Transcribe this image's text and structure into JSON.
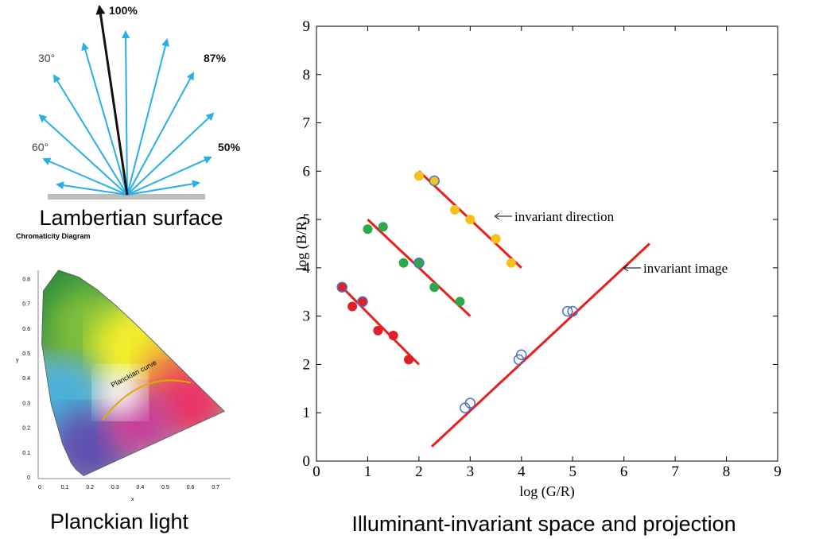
{
  "lambertian": {
    "labels": [
      "100%",
      "30°",
      "87%",
      "60°",
      "50%"
    ],
    "caption": "Lambertian surface"
  },
  "chromaticity": {
    "title": "Chromaticity Diagram",
    "curve_label": "Planckian curve",
    "axis_x": "x",
    "axis_y": "y",
    "xticks": [
      0,
      0.1,
      0.2,
      0.3,
      0.4,
      0.5,
      0.6,
      0.7
    ],
    "yticks": [
      0,
      0.1,
      0.2,
      0.3,
      0.4,
      0.5,
      0.6,
      0.7,
      0.8
    ],
    "caption": "Planckian light"
  },
  "chart_data": {
    "type": "scatter",
    "xlabel": "log (G/R)",
    "ylabel": "log (B/R)",
    "caption": "Illuminant-invariant space and projection",
    "xlim": [
      0,
      9
    ],
    "ylim": [
      0,
      9
    ],
    "xticks": [
      0,
      1,
      2,
      3,
      4,
      5,
      6,
      7,
      8,
      9
    ],
    "yticks": [
      0,
      1,
      2,
      3,
      4,
      5,
      6,
      7,
      8,
      9
    ],
    "series": [
      {
        "marker": "line",
        "color": "#e8201c",
        "x": [
          0.5,
          2
        ],
        "values": [
          3.6,
          2
        ]
      },
      {
        "marker": "line",
        "color": "#e8201c",
        "x": [
          1,
          3
        ],
        "values": [
          5,
          3
        ]
      },
      {
        "marker": "line",
        "color": "#e8201c",
        "x": [
          2,
          4
        ],
        "values": [
          6,
          4
        ]
      },
      {
        "marker": "line",
        "color": "#e8201c",
        "x": [
          2.25,
          6.5
        ],
        "values": [
          0.3,
          4.5
        ]
      },
      {
        "marker": "filled",
        "color": "#e01f2a",
        "x": [
          0.5,
          0.7,
          0.9,
          1.2,
          1.5,
          1.8
        ],
        "values": [
          3.6,
          3.2,
          3.3,
          2.7,
          2.6,
          2.1
        ]
      },
      {
        "marker": "filled",
        "color": "#2ea84a",
        "x": [
          1,
          1.3,
          1.7,
          2,
          2.3,
          2.8
        ],
        "values": [
          4.8,
          4.85,
          4.1,
          4.1,
          3.6,
          3.3
        ]
      },
      {
        "marker": "filled",
        "color": "#f6c21a",
        "x": [
          2,
          2.3,
          2.7,
          3,
          3.5,
          3.8
        ],
        "values": [
          5.9,
          5.8,
          5.2,
          5,
          4.6,
          4.1
        ]
      },
      {
        "marker": "open",
        "color": "#4a73c8",
        "x": [
          0.5,
          0.9,
          2,
          2.3,
          2.9,
          3,
          3.95,
          4,
          4.9,
          5
        ],
        "values": [
          3.6,
          3.3,
          4.1,
          5.8,
          1.1,
          1.2,
          2.1,
          2.2,
          3.1,
          3.1
        ]
      }
    ],
    "annotations": [
      "invariant direction",
      "invariant image"
    ]
  }
}
